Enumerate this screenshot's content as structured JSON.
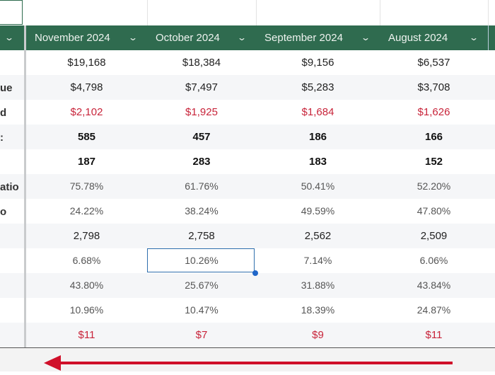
{
  "columns": [
    "November 2024",
    "October 2024",
    "September 2024",
    "August 2024"
  ],
  "row_labels": [
    "",
    "ue",
    "d",
    ":",
    "",
    "atio",
    "o",
    "",
    "",
    "",
    "",
    ""
  ],
  "rows": [
    {
      "style": "normal",
      "values": [
        "$19,168",
        "$18,384",
        "$9,156",
        "$6,537"
      ]
    },
    {
      "style": "normal",
      "values": [
        "$4,798",
        "$7,497",
        "$5,283",
        "$3,708"
      ]
    },
    {
      "style": "red",
      "values": [
        "$2,102",
        "$1,925",
        "$1,684",
        "$1,626"
      ]
    },
    {
      "style": "bold",
      "values": [
        "585",
        "457",
        "186",
        "166"
      ]
    },
    {
      "style": "bold",
      "values": [
        "187",
        "283",
        "183",
        "152"
      ]
    },
    {
      "style": "pct",
      "values": [
        "75.78%",
        "61.76%",
        "50.41%",
        "52.20%"
      ]
    },
    {
      "style": "pct",
      "values": [
        "24.22%",
        "38.24%",
        "49.59%",
        "47.80%"
      ]
    },
    {
      "style": "normal",
      "values": [
        "2,798",
        "2,758",
        "2,562",
        "2,509"
      ]
    },
    {
      "style": "pct",
      "values": [
        "6.68%",
        "10.26%",
        "7.14%",
        "6.06%"
      ]
    },
    {
      "style": "pct",
      "values": [
        "43.80%",
        "25.67%",
        "31.88%",
        "43.84%"
      ]
    },
    {
      "style": "pct",
      "values": [
        "10.96%",
        "10.47%",
        "18.39%",
        "24.87%"
      ]
    },
    {
      "style": "red",
      "values": [
        "$11",
        "$7",
        "$9",
        "$11"
      ]
    }
  ],
  "selected_cell": {
    "column": "October 2024",
    "value": "10.26%"
  },
  "colors": {
    "header": "#2f6b4f",
    "negative": "#c8243a",
    "arrow": "#d0102a",
    "selection": "#2f6fad"
  },
  "annotation": {
    "icon": "arrow-left-icon"
  }
}
